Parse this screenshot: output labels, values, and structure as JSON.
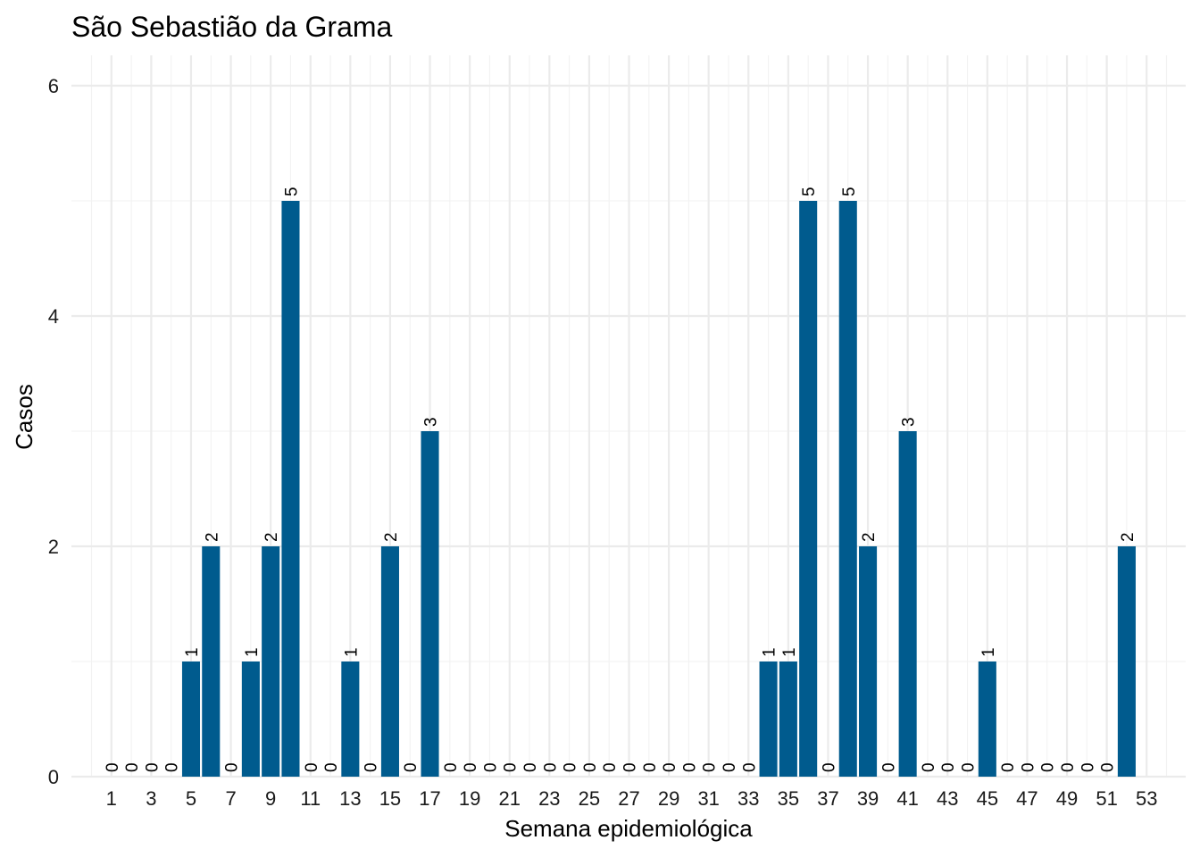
{
  "chart_data": {
    "type": "bar",
    "title": "São Sebastião da Grama",
    "xlabel": "Semana epidemiológica",
    "ylabel": "Casos",
    "x": [
      1,
      2,
      3,
      4,
      5,
      6,
      7,
      8,
      9,
      10,
      11,
      12,
      13,
      14,
      15,
      16,
      17,
      18,
      19,
      20,
      21,
      22,
      23,
      24,
      25,
      26,
      27,
      28,
      29,
      30,
      31,
      32,
      33,
      34,
      35,
      36,
      37,
      38,
      39,
      40,
      41,
      42,
      43,
      44,
      45,
      46,
      47,
      48,
      49,
      50,
      51,
      52
    ],
    "values": [
      0,
      0,
      0,
      0,
      1,
      2,
      0,
      1,
      2,
      5,
      0,
      0,
      1,
      0,
      2,
      0,
      3,
      0,
      0,
      0,
      0,
      0,
      0,
      0,
      0,
      0,
      0,
      0,
      0,
      0,
      0,
      0,
      0,
      1,
      1,
      5,
      0,
      5,
      2,
      0,
      3,
      0,
      0,
      0,
      1,
      0,
      0,
      0,
      0,
      0,
      0,
      2
    ],
    "x_tick_labels": [
      "1",
      "3",
      "5",
      "7",
      "9",
      "11",
      "13",
      "15",
      "17",
      "19",
      "21",
      "23",
      "25",
      "27",
      "29",
      "31",
      "33",
      "35",
      "37",
      "39",
      "41",
      "43",
      "45",
      "47",
      "49",
      "51",
      "53"
    ],
    "y_tick_labels": [
      "0",
      "2",
      "4",
      "6"
    ],
    "ylim": [
      0,
      6.2
    ],
    "xlim": [
      0,
      54
    ],
    "bar_color": "#005b8e",
    "grid": true,
    "legend": "none"
  }
}
